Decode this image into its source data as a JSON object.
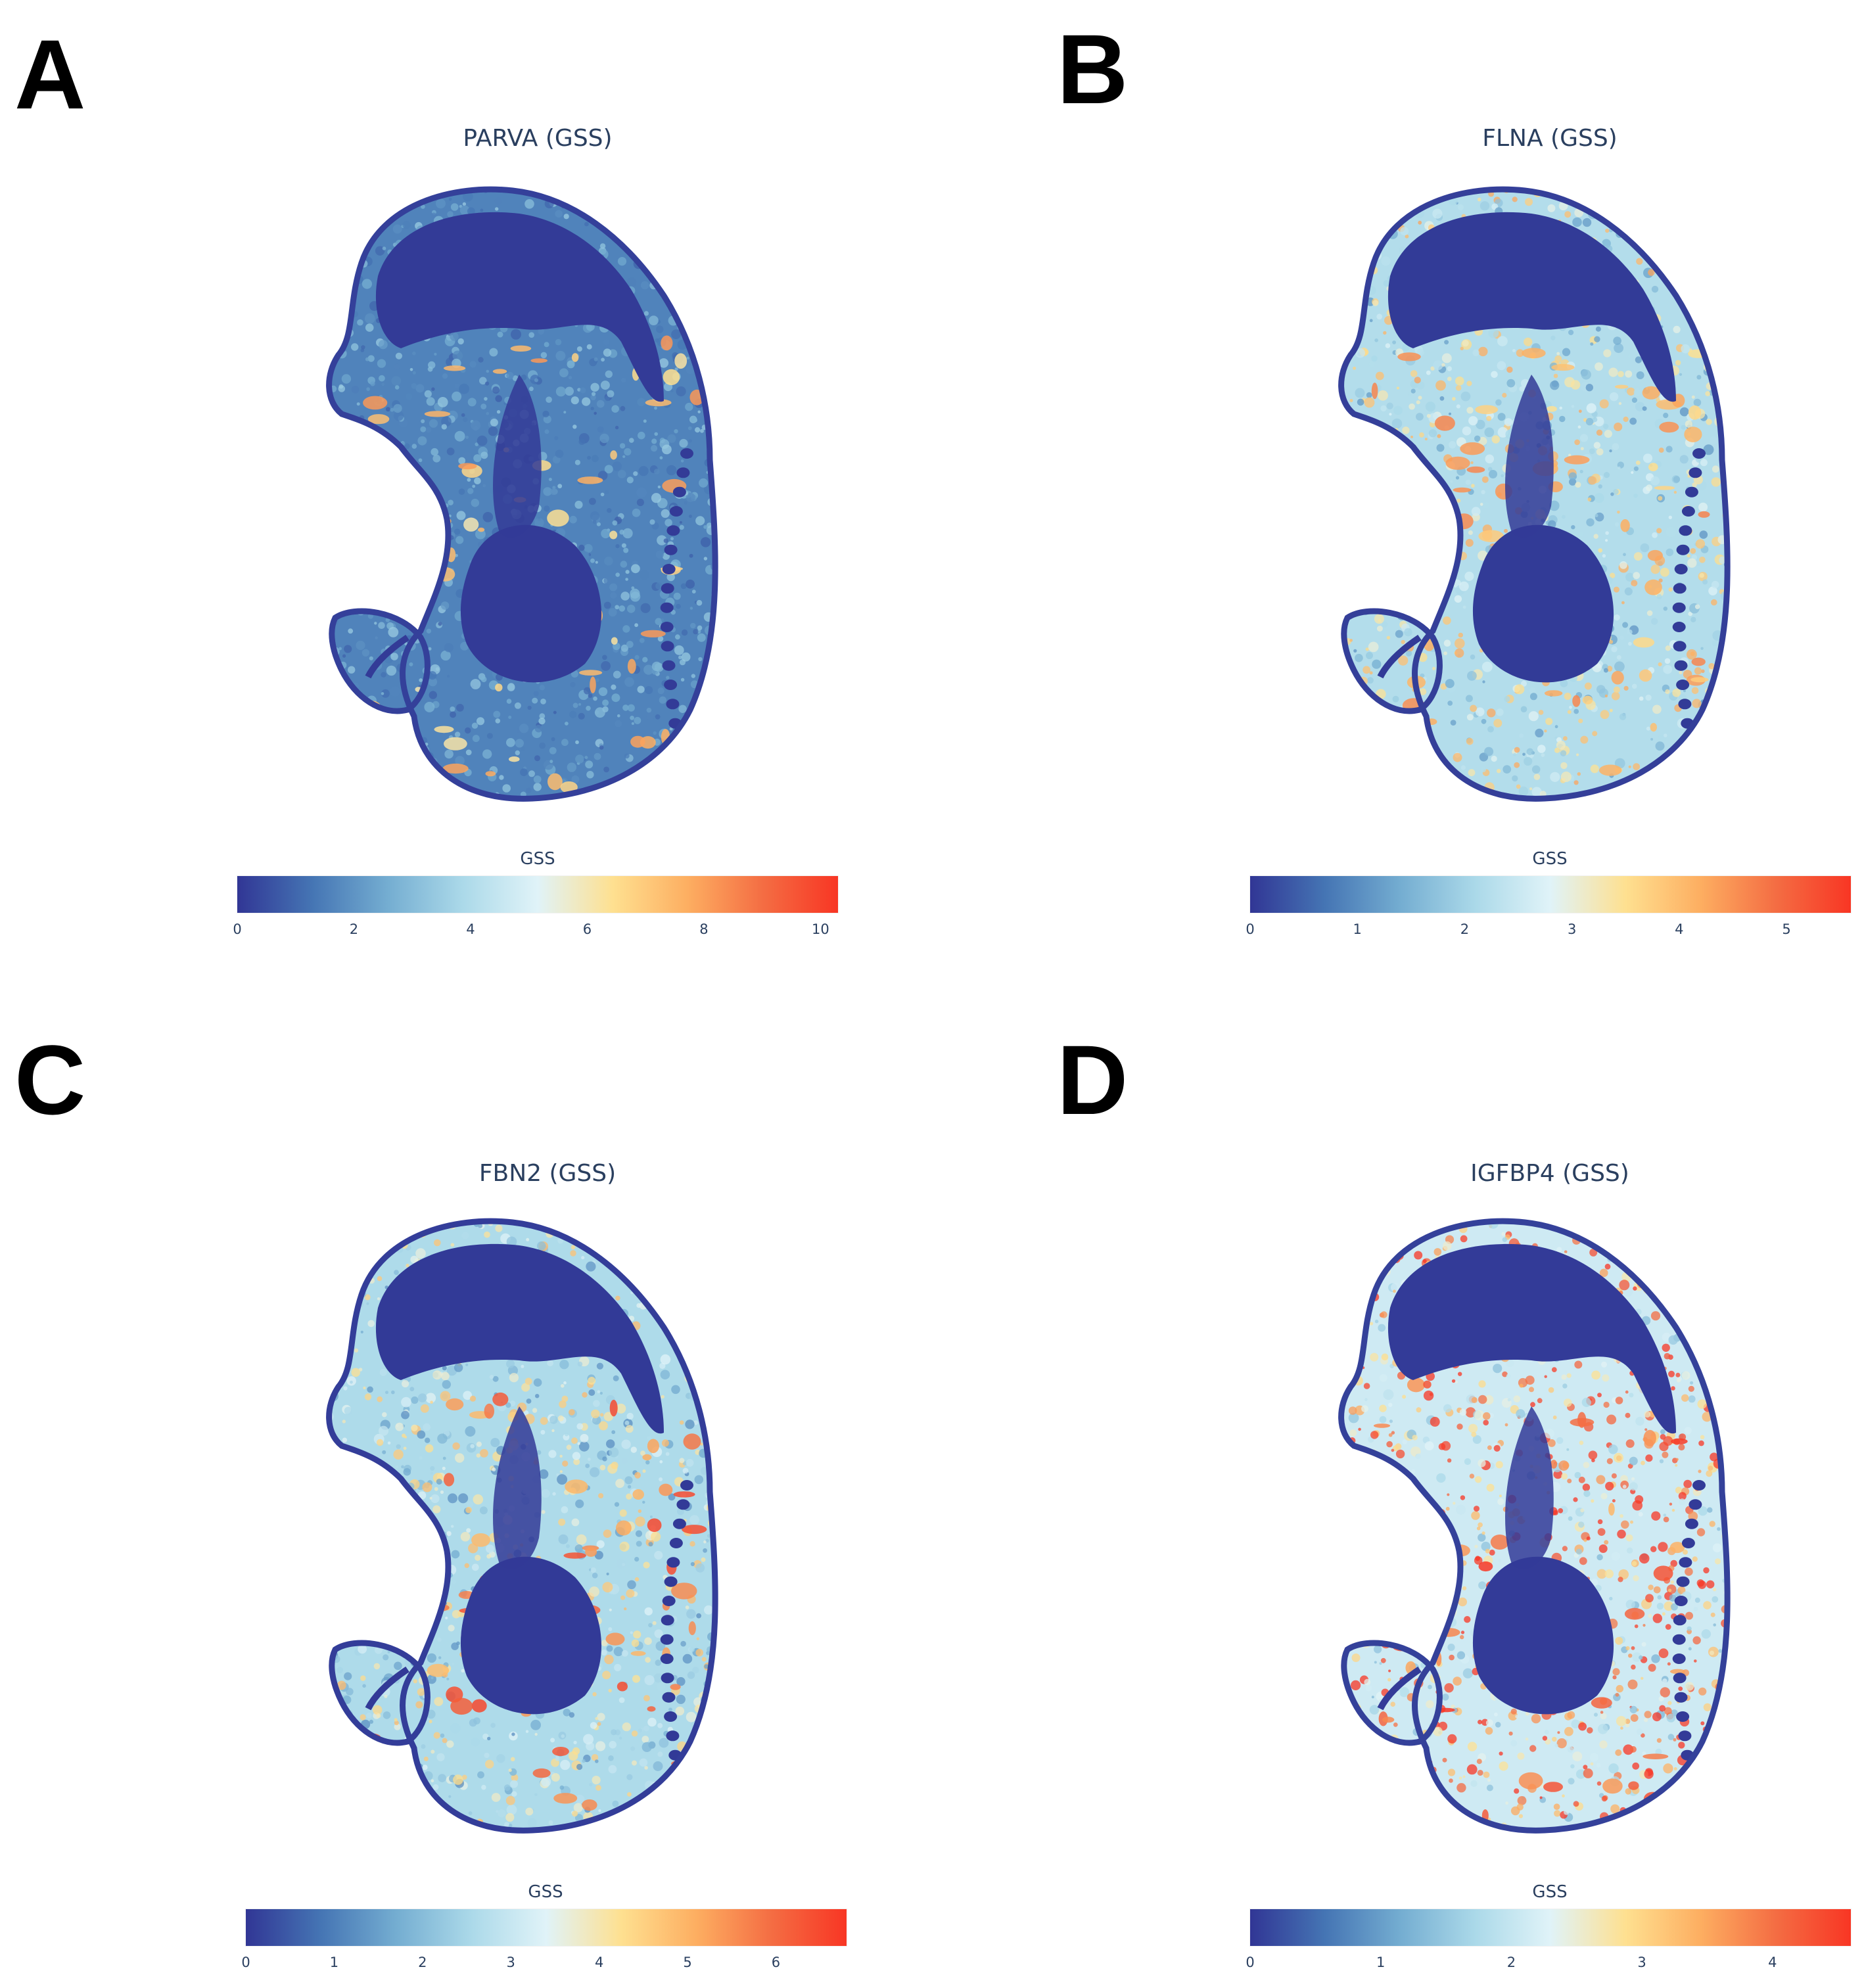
{
  "chart_data": [
    {
      "type": "heatmap",
      "panel_label": "A",
      "title": "PARVA (GSS)",
      "colorbar_title": "GSS",
      "range": [
        0,
        10.3
      ],
      "ticks": [
        0,
        2,
        4,
        6,
        8,
        10
      ],
      "colorscale": [
        "#313695",
        "#4575b4",
        "#74add1",
        "#abd9e9",
        "#e0f3f8",
        "#fee090",
        "#fdae61",
        "#f46d43",
        "#f83624"
      ],
      "regions": {
        "background": 1.6,
        "tissue": 2.4,
        "brain": 0.1,
        "liver": 0.1,
        "outline": 0.2,
        "hotspots": 7.5
      }
    },
    {
      "type": "heatmap",
      "panel_label": "B",
      "title": "FLNA (GSS)",
      "colorbar_title": "GSS",
      "range": [
        0,
        5.6
      ],
      "ticks": [
        0,
        1,
        2,
        3,
        4,
        5
      ],
      "colorscale": [
        "#313695",
        "#4575b4",
        "#74add1",
        "#abd9e9",
        "#e0f3f8",
        "#fee090",
        "#fdae61",
        "#f46d43",
        "#f83624"
      ],
      "regions": {
        "background": 2.2,
        "tissue": 3.0,
        "brain": 0.05,
        "liver": 0.05,
        "outline": 0.1,
        "hotspots": 4.3
      }
    },
    {
      "type": "heatmap",
      "panel_label": "C",
      "title": "FBN2 (GSS)",
      "colorbar_title": "GSS",
      "range": [
        0,
        6.8
      ],
      "ticks": [
        0,
        1,
        2,
        3,
        4,
        5,
        6
      ],
      "colorscale": [
        "#313695",
        "#4575b4",
        "#74add1",
        "#abd9e9",
        "#e0f3f8",
        "#fee090",
        "#fdae61",
        "#f46d43",
        "#f83624"
      ],
      "regions": {
        "background": 2.6,
        "tissue": 3.4,
        "brain": 0.05,
        "liver": 0.05,
        "outline": 0.1,
        "hotspots": 6.0
      }
    },
    {
      "type": "heatmap",
      "panel_label": "D",
      "title": "IGFBP4 (GSS)",
      "colorbar_title": "GSS",
      "range": [
        0,
        4.6
      ],
      "ticks": [
        0,
        1,
        2,
        3,
        4
      ],
      "colorscale": [
        "#313695",
        "#4575b4",
        "#74add1",
        "#abd9e9",
        "#e0f3f8",
        "#fee090",
        "#fdae61",
        "#f46d43",
        "#f83624"
      ],
      "regions": {
        "background": 2.1,
        "tissue": 3.5,
        "brain": 0.05,
        "liver": 0.05,
        "outline": 0.1,
        "hotspots": 4.2
      }
    }
  ]
}
